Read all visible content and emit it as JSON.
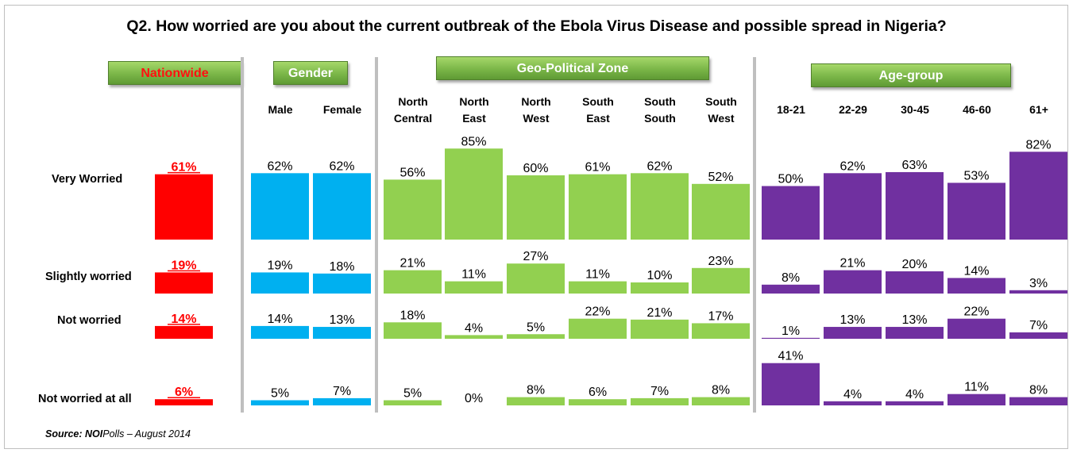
{
  "title": "Q2. How worried are you about the current outbreak of the Ebola Virus Disease and possible spread in Nigeria?",
  "source": {
    "label": "Source: NOI",
    "rest": "Polls – August 2014"
  },
  "groups": {
    "nationwide": "Nationwide",
    "gender": "Gender",
    "zone": "Geo-Political Zone",
    "age": "Age-group"
  },
  "rows": [
    "Very Worried",
    "Slightly worried",
    "Not worried",
    "Not worried at all"
  ],
  "columns": [
    {
      "head1": "",
      "head2": ""
    },
    {
      "head1": "",
      "head2": "Male"
    },
    {
      "head1": "",
      "head2": "Female"
    },
    {
      "head1": "North",
      "head2": "Central"
    },
    {
      "head1": "North",
      "head2": "East"
    },
    {
      "head1": "North",
      "head2": "West"
    },
    {
      "head1": "South",
      "head2": "East"
    },
    {
      "head1": "South",
      "head2": "South"
    },
    {
      "head1": "South",
      "head2": "West"
    },
    {
      "head1": "",
      "head2": "18-21"
    },
    {
      "head1": "",
      "head2": "22-29"
    },
    {
      "head1": "",
      "head2": "30-45"
    },
    {
      "head1": "",
      "head2": "46-60"
    },
    {
      "head1": "",
      "head2": "61+"
    }
  ],
  "colors": {
    "nationwide": "#ff0000",
    "gender": "#00b0f0",
    "zone": "#92d050",
    "age": "#7030a0",
    "nationwide_label": "#ff0000",
    "divider": "#bfbfbf"
  },
  "chart_data": {
    "type": "bar",
    "title": "Q2. How worried are you about the current outbreak of the Ebola Virus Disease and possible spread in Nigeria?",
    "unit": "%",
    "categories": [
      "Nationwide",
      "Male",
      "Female",
      "North Central",
      "North East",
      "North West",
      "South East",
      "South South",
      "South West",
      "18-21",
      "22-29",
      "30-45",
      "46-60",
      "61+"
    ],
    "series": [
      {
        "name": "Very Worried",
        "values": [
          61,
          62,
          62,
          56,
          85,
          60,
          61,
          62,
          52,
          50,
          62,
          63,
          53,
          82
        ]
      },
      {
        "name": "Slightly worried",
        "values": [
          19,
          19,
          18,
          21,
          11,
          27,
          11,
          10,
          23,
          8,
          21,
          20,
          14,
          3
        ]
      },
      {
        "name": "Not worried",
        "values": [
          14,
          14,
          13,
          18,
          4,
          5,
          22,
          21,
          17,
          1,
          13,
          13,
          22,
          7
        ]
      },
      {
        "name": "Not worried at all",
        "values": [
          6,
          5,
          7,
          5,
          0,
          8,
          6,
          7,
          8,
          41,
          4,
          4,
          11,
          8
        ]
      }
    ]
  }
}
